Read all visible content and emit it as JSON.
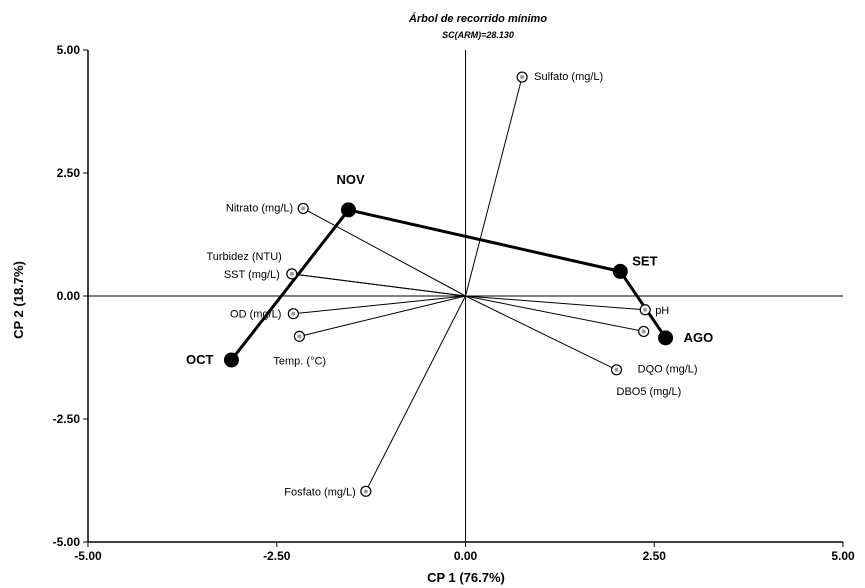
{
  "chart_data": {
    "type": "scatter",
    "title": "Árbol de recorrido mínimo",
    "subtitle": "SC(ARM)=28.130",
    "xlabel": "CP 1 (76.7%)",
    "ylabel": "CP 2 (18.7%)",
    "xlim": [
      -5.0,
      5.0
    ],
    "ylim": [
      -5.0,
      5.0
    ],
    "x_ticks": [
      "-5.00",
      "-2.50",
      "0.00",
      "2.50",
      "5.00"
    ],
    "y_ticks": [
      "5.00",
      "2.50",
      "0.00",
      "-2.50",
      "-5.00"
    ],
    "grid": false,
    "variables": [
      {
        "name": "Sulfato (mg/L)",
        "x": 0.75,
        "y": 4.45
      },
      {
        "name": "Nitrato (mg/L)",
        "x": -2.15,
        "y": 1.78
      },
      {
        "name": "Turbidez (NTU)",
        "x": -2.3,
        "y": 0.45
      },
      {
        "name": "SST (mg/L)",
        "x": -2.3,
        "y": 0.45
      },
      {
        "name": "OD (mg/L)",
        "x": -2.28,
        "y": -0.36
      },
      {
        "name": "Temp. (°C)",
        "x": -2.2,
        "y": -0.82
      },
      {
        "name": "pH",
        "x": 2.38,
        "y": -0.28
      },
      {
        "name": "DQO (mg/L)",
        "x": 2.36,
        "y": -0.72
      },
      {
        "name": "DBO5 (mg/L)",
        "x": 2.0,
        "y": -1.5
      },
      {
        "name": "Fosfato (mg/L)",
        "x": -1.32,
        "y": -3.97
      }
    ],
    "months": [
      {
        "name": "NOV",
        "x": -1.55,
        "y": 1.75
      },
      {
        "name": "SET",
        "x": 2.05,
        "y": 0.5
      },
      {
        "name": "AGO",
        "x": 2.65,
        "y": -0.85
      },
      {
        "name": "OCT",
        "x": -3.1,
        "y": -1.3
      }
    ],
    "mst_edges": [
      [
        "OCT",
        "NOV"
      ],
      [
        "NOV",
        "SET"
      ],
      [
        "SET",
        "AGO"
      ]
    ]
  }
}
